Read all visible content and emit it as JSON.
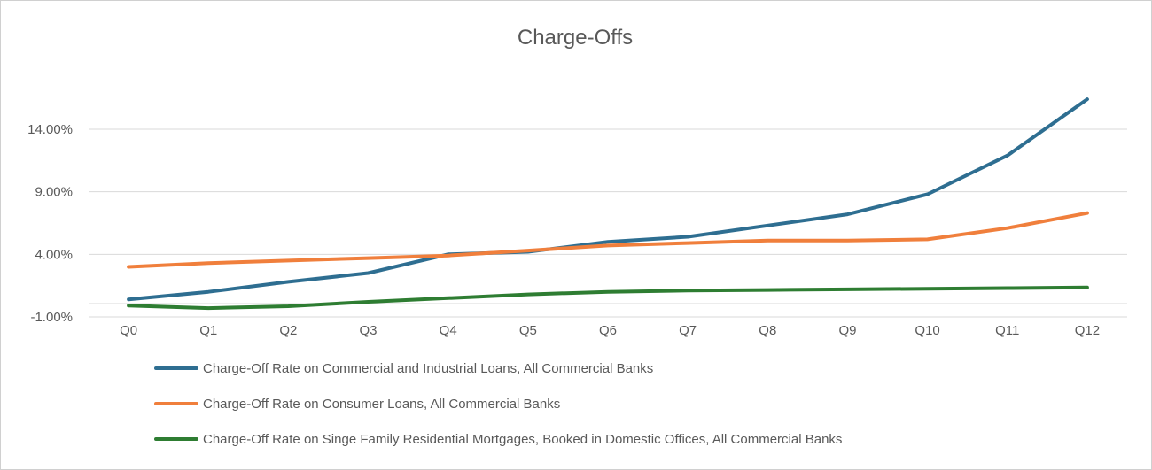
{
  "chart_data": {
    "type": "line",
    "title": "Charge-Offs",
    "xlabel": "",
    "ylabel": "",
    "categories": [
      "Q0",
      "Q1",
      "Q2",
      "Q3",
      "Q4",
      "Q5",
      "Q6",
      "Q7",
      "Q8",
      "Q9",
      "Q10",
      "Q11",
      "Q12"
    ],
    "yticks": [
      -1,
      4,
      9,
      14
    ],
    "ytick_labels": [
      "-1.00%",
      "4.00%",
      "9.00%",
      "14.00%"
    ],
    "ylim": [
      -1,
      17
    ],
    "grid": true,
    "legend_position": "bottom",
    "series": [
      {
        "name": "Charge-Off Rate on Commercial and Industrial Loans, All Commercial Banks",
        "color": "#2e6e91",
        "values": [
          0.4,
          1.0,
          1.8,
          2.5,
          4.0,
          4.2,
          5.0,
          5.4,
          6.3,
          7.2,
          8.8,
          11.9,
          16.4
        ]
      },
      {
        "name": "Charge-Off Rate on Consumer Loans, All Commercial Banks",
        "color": "#f07f3c",
        "values": [
          3.0,
          3.3,
          3.5,
          3.7,
          3.9,
          4.3,
          4.7,
          4.9,
          5.1,
          5.1,
          5.2,
          6.1,
          7.3
        ]
      },
      {
        "name": "Charge-Off Rate on Singe Family Residential Mortgages, Booked in Domestic Offices, All Commercial Banks",
        "color": "#2e7d32",
        "values": [
          -0.1,
          -0.3,
          -0.15,
          0.2,
          0.5,
          0.8,
          1.0,
          1.1,
          1.15,
          1.2,
          1.25,
          1.3,
          1.35
        ]
      }
    ]
  }
}
